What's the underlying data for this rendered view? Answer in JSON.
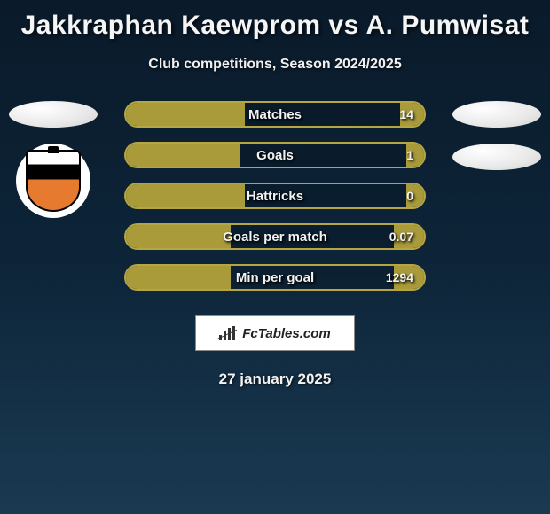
{
  "title": "Jakkraphan Kaewprom vs A. Pumwisat",
  "subtitle": "Club competitions, Season 2024/2025",
  "brand": "FcTables.com",
  "date": "27 january 2025",
  "colors": {
    "stat_border": "#b5a642",
    "stat_fill": "#a99a3a",
    "bg_top": "#0a1a2a",
    "bg_bottom": "#1a3a52"
  },
  "stats": [
    {
      "label": "Matches",
      "right_value": "14",
      "left_pct": 40,
      "right_pct": 8
    },
    {
      "label": "Goals",
      "right_value": "1",
      "left_pct": 38,
      "right_pct": 6
    },
    {
      "label": "Hattricks",
      "right_value": "0",
      "left_pct": 40,
      "right_pct": 6
    },
    {
      "label": "Goals per match",
      "right_value": "0.07",
      "left_pct": 35,
      "right_pct": 10
    },
    {
      "label": "Min per goal",
      "right_value": "1294",
      "left_pct": 35,
      "right_pct": 10
    }
  ]
}
